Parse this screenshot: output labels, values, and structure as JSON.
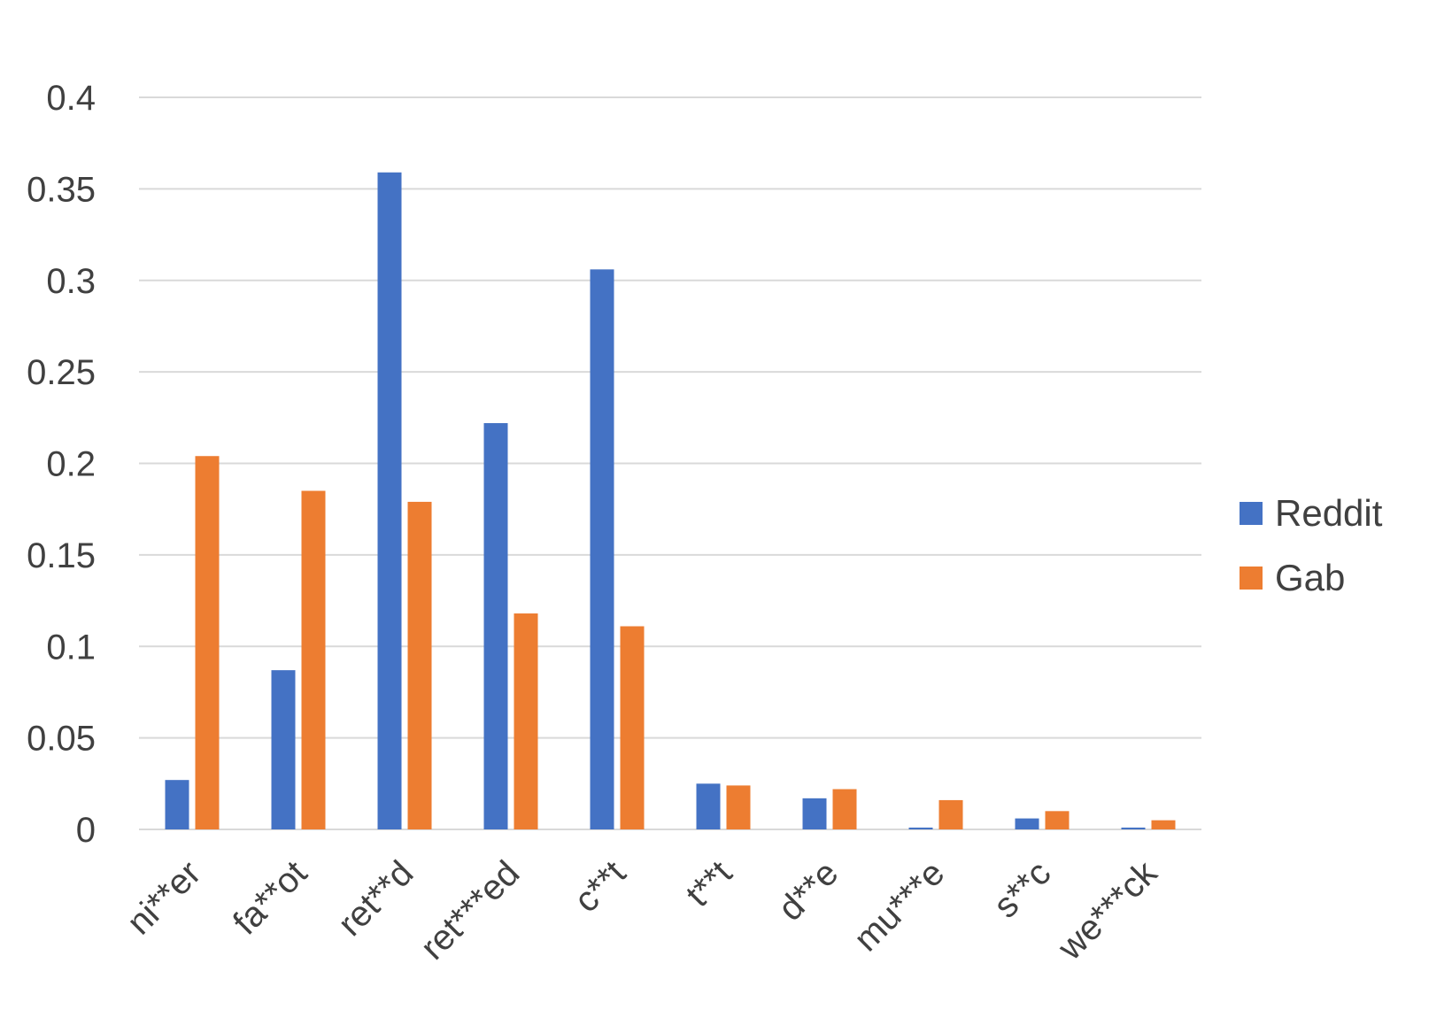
{
  "chart_data": {
    "type": "bar",
    "title": "",
    "xlabel": "",
    "ylabel": "",
    "categories": [
      "ni**er",
      "fa**ot",
      "ret**d",
      "ret***ed",
      "c**t",
      "t**t",
      "d**e",
      "mu***e",
      "s**c",
      "we***ck"
    ],
    "series": [
      {
        "name": "Reddit",
        "color": "#4472C4",
        "values": [
          0.027,
          0.087,
          0.359,
          0.222,
          0.306,
          0.025,
          0.017,
          0.001,
          0.006,
          0.001
        ]
      },
      {
        "name": "Gab",
        "color": "#ED7D31",
        "values": [
          0.204,
          0.185,
          0.179,
          0.118,
          0.111,
          0.024,
          0.022,
          0.016,
          0.01,
          0.005
        ]
      }
    ],
    "ylim": [
      0,
      0.4
    ],
    "yticks": [
      "0",
      "0.05",
      "0.1",
      "0.15",
      "0.2",
      "0.25",
      "0.3",
      "0.35",
      "0.4"
    ],
    "ytick_values": [
      0,
      0.05,
      0.1,
      0.15,
      0.2,
      0.25,
      0.3,
      0.35,
      0.4
    ],
    "grid": true,
    "legend_position": "right"
  }
}
